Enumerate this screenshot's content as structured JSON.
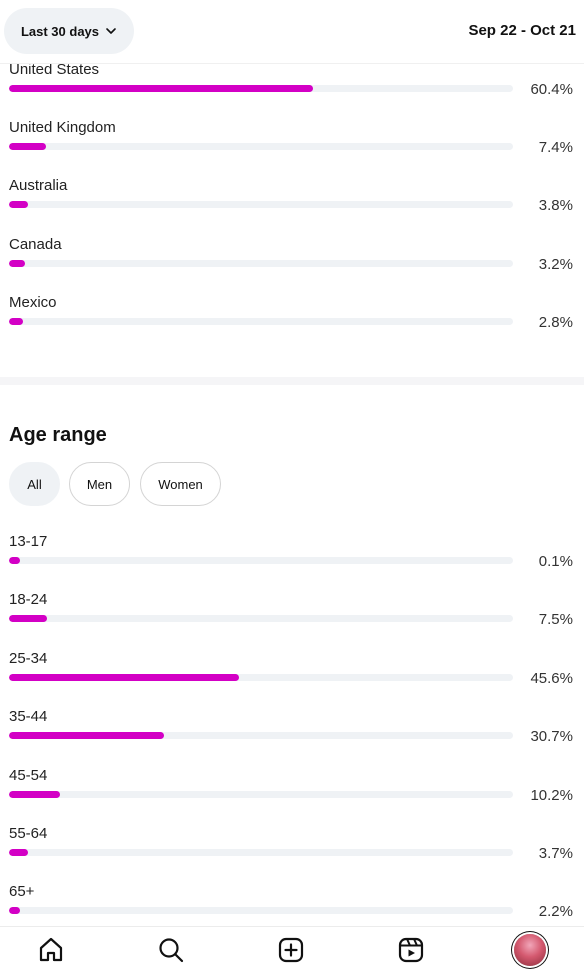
{
  "header": {
    "range_label": "Last 30 days",
    "date_range": "Sep 22 - Oct 21"
  },
  "countries": [
    {
      "label": "United States",
      "percent": "60.4%",
      "value": 60.4
    },
    {
      "label": "United Kingdom",
      "percent": "7.4%",
      "value": 7.4
    },
    {
      "label": "Australia",
      "percent": "3.8%",
      "value": 3.8
    },
    {
      "label": "Canada",
      "percent": "3.2%",
      "value": 3.2
    },
    {
      "label": "Mexico",
      "percent": "2.8%",
      "value": 2.8
    }
  ],
  "age": {
    "title": "Age range",
    "filters": [
      {
        "label": "All",
        "active": true
      },
      {
        "label": "Men",
        "active": false
      },
      {
        "label": "Women",
        "active": false
      }
    ],
    "rows": [
      {
        "label": "13-17",
        "percent": "0.1%",
        "value": 0.1
      },
      {
        "label": "18-24",
        "percent": "7.5%",
        "value": 7.5
      },
      {
        "label": "25-34",
        "percent": "45.6%",
        "value": 45.6
      },
      {
        "label": "35-44",
        "percent": "30.7%",
        "value": 30.7
      },
      {
        "label": "45-54",
        "percent": "10.2%",
        "value": 10.2
      },
      {
        "label": "55-64",
        "percent": "3.7%",
        "value": 3.7
      },
      {
        "label": "65+",
        "percent": "2.2%",
        "value": 2.2
      }
    ]
  },
  "colors": {
    "accent": "#d300c5",
    "track": "#eff2f5"
  },
  "nav": {
    "icons": [
      "home-icon",
      "search-icon",
      "create-icon",
      "reels-icon",
      "profile-avatar"
    ]
  }
}
